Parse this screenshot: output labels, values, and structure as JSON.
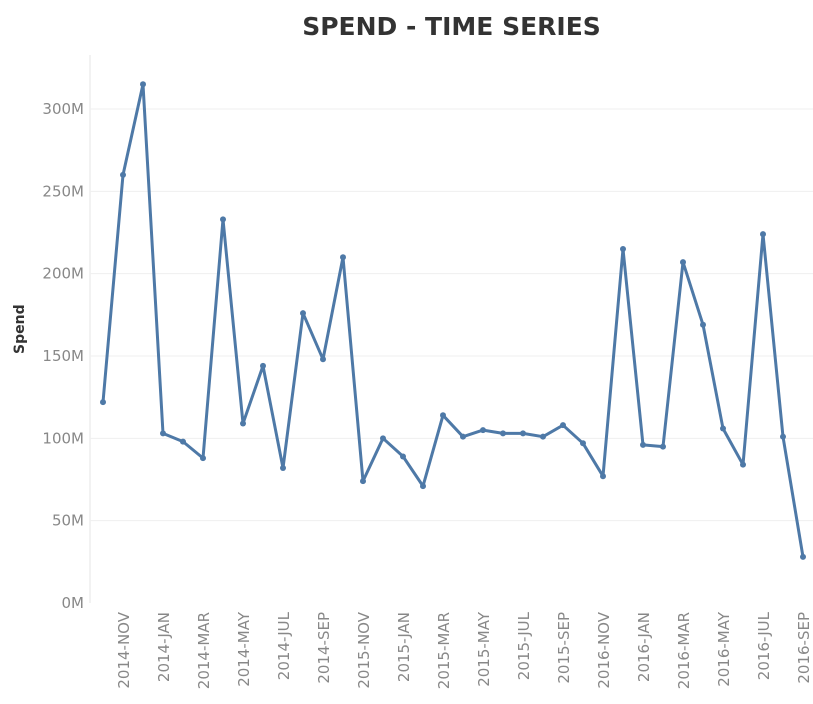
{
  "chart_data": {
    "type": "line",
    "title": "SPEND - TIME SERIES",
    "xlabel": "",
    "ylabel": "Spend",
    "ylim": [
      0,
      330
    ],
    "y_ticks": [
      "0M",
      "50M",
      "100M",
      "150M",
      "200M",
      "250M",
      "300M"
    ],
    "y_tick_values": [
      0,
      50,
      100,
      150,
      200,
      250,
      300
    ],
    "x_tick_labels": [
      "2014-NOV",
      "2014-JAN",
      "2014-MAR",
      "2014-MAY",
      "2014-JUL",
      "2014-SEP",
      "2015-NOV",
      "2015-JAN",
      "2015-MAR",
      "2015-MAY",
      "2015-JUL",
      "2015-SEP",
      "2016-NOV",
      "2016-JAN",
      "2016-MAR",
      "2016-MAY",
      "2016-JUL",
      "2016-SEP"
    ],
    "grid": true,
    "line_color": "#4e79a7",
    "series": [
      {
        "values": [
          122,
          260,
          315,
          103,
          98,
          88,
          233,
          109,
          144,
          82,
          176,
          148,
          210,
          74,
          100,
          89,
          71,
          114,
          101,
          105,
          103,
          103,
          101,
          108,
          97,
          77,
          215,
          96,
          95,
          207,
          169,
          106,
          84,
          224,
          101,
          28
        ]
      }
    ]
  }
}
